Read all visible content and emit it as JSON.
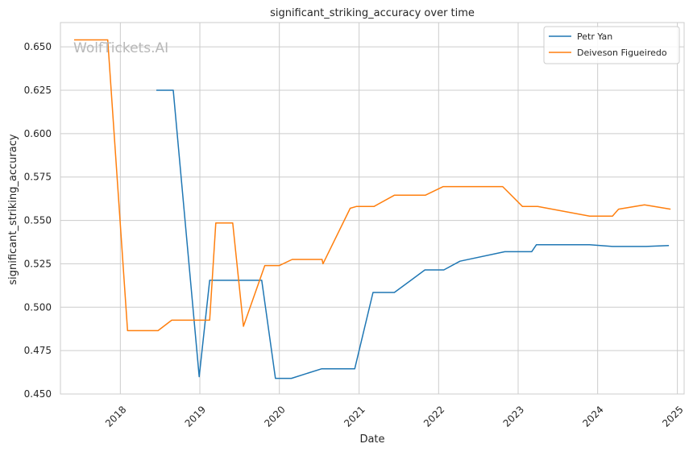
{
  "chart_data": {
    "type": "line",
    "title": "significant_striking_accuracy over time",
    "xlabel": "Date",
    "ylabel": "significant_striking_accuracy",
    "watermark": "WolfTickets.AI",
    "x_axis": "date",
    "xlim": [
      "2017-04-01",
      "2025-02-01"
    ],
    "ylim": [
      0.45,
      0.664
    ],
    "x_ticks": [
      "2018",
      "2019",
      "2020",
      "2021",
      "2022",
      "2023",
      "2024",
      "2025"
    ],
    "y_ticks": [
      "0.450",
      "0.475",
      "0.500",
      "0.525",
      "0.550",
      "0.575",
      "0.600",
      "0.625",
      "0.650"
    ],
    "grid": true,
    "legend_position": "top-right",
    "series": [
      {
        "name": "Petr Yan",
        "color": "#1f77b4",
        "points": [
          [
            "2018-06-15",
            0.625
          ],
          [
            "2018-09-01",
            0.625
          ],
          [
            "2018-12-29",
            0.46
          ],
          [
            "2019-02-15",
            0.5155
          ],
          [
            "2019-06-01",
            0.5155
          ],
          [
            "2019-10-12",
            0.5155
          ],
          [
            "2019-12-14",
            0.459
          ],
          [
            "2020-02-25",
            0.459
          ],
          [
            "2020-07-12",
            0.4645
          ],
          [
            "2020-12-12",
            0.4645
          ],
          [
            "2021-03-06",
            0.5085
          ],
          [
            "2021-06-12",
            0.5085
          ],
          [
            "2021-10-30",
            0.5215
          ],
          [
            "2022-01-25",
            0.5215
          ],
          [
            "2022-04-09",
            0.5265
          ],
          [
            "2022-11-01",
            0.532
          ],
          [
            "2023-03-04",
            0.532
          ],
          [
            "2023-03-26",
            0.536
          ],
          [
            "2023-11-25",
            0.536
          ],
          [
            "2024-03-09",
            0.535
          ],
          [
            "2024-08-10",
            0.535
          ],
          [
            "2024-11-23",
            0.5355
          ]
        ]
      },
      {
        "name": "Deiveson Figueiredo",
        "color": "#ff7f0e",
        "points": [
          [
            "2017-06-03",
            0.654
          ],
          [
            "2017-11-04",
            0.654
          ],
          [
            "2018-02-03",
            0.4865
          ],
          [
            "2018-06-23",
            0.4865
          ],
          [
            "2018-08-25",
            0.4925
          ],
          [
            "2019-02-15",
            0.4925
          ],
          [
            "2019-03-15",
            0.5485
          ],
          [
            "2019-06-01",
            0.5485
          ],
          [
            "2019-07-20",
            0.489
          ],
          [
            "2019-10-26",
            0.524
          ],
          [
            "2020-01-01",
            0.524
          ],
          [
            "2020-02-29",
            0.5275
          ],
          [
            "2020-07-15",
            0.5275
          ],
          [
            "2020-07-19",
            0.525
          ],
          [
            "2020-11-21",
            0.557
          ],
          [
            "2020-12-19",
            0.558
          ],
          [
            "2021-03-10",
            0.558
          ],
          [
            "2021-06-12",
            0.5645
          ],
          [
            "2021-11-01",
            0.5645
          ],
          [
            "2022-01-22",
            0.5695
          ],
          [
            "2022-10-22",
            0.5695
          ],
          [
            "2023-01-21",
            0.558
          ],
          [
            "2023-04-01",
            0.558
          ],
          [
            "2023-11-25",
            0.5525
          ],
          [
            "2024-03-09",
            0.5525
          ],
          [
            "2024-04-06",
            0.5565
          ],
          [
            "2024-08-03",
            0.559
          ],
          [
            "2024-12-01",
            0.5565
          ]
        ]
      }
    ]
  }
}
